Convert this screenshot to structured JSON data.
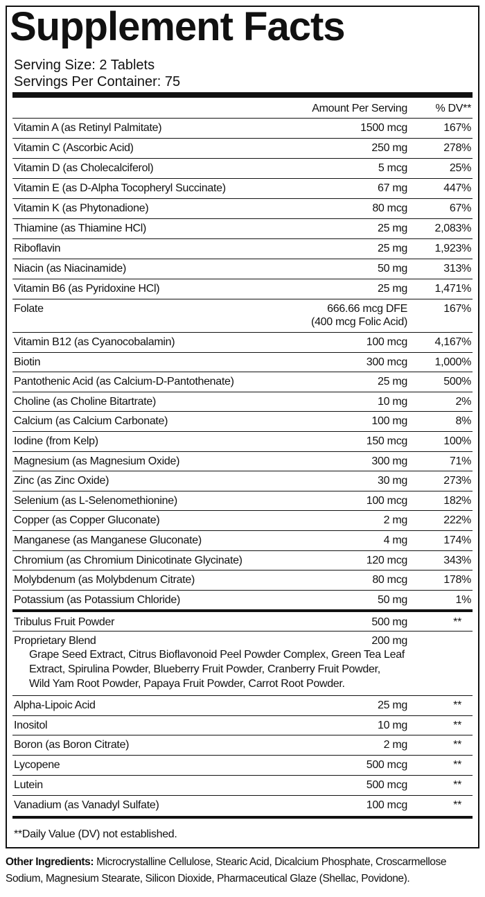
{
  "header": {
    "title": "Supplement Facts",
    "serving_size": "Serving Size: 2 Tablets",
    "servings_per_container": "Servings Per Container: 75"
  },
  "table": {
    "columns": [
      "Amount Per Serving",
      "% DV**"
    ],
    "rows": [
      {
        "name": "Vitamin A (as Retinyl Palmitate)",
        "amount": "1500 mcg",
        "dv": "167%"
      },
      {
        "name": "Vitamin C (Ascorbic Acid)",
        "amount": "250 mg",
        "dv": "278%"
      },
      {
        "name": "Vitamin D (as Cholecalciferol)",
        "amount": "5 mcg",
        "dv": "25%"
      },
      {
        "name": "Vitamin E (as D-Alpha Tocopheryl Succinate)",
        "amount": "67 mg",
        "dv": "447%"
      },
      {
        "name": "Vitamin K (as Phytonadione)",
        "amount": "80 mcg",
        "dv": "67%"
      },
      {
        "name": "Thiamine (as Thiamine HCl)",
        "amount": "25 mg",
        "dv": "2,083%"
      },
      {
        "name": "Riboflavin",
        "amount": "25 mg",
        "dv": "1,923%"
      },
      {
        "name": "Niacin (as Niacinamide)",
        "amount": "50 mg",
        "dv": "313%"
      },
      {
        "name": "Vitamin B6 (as Pyridoxine HCl)",
        "amount": "25 mg",
        "dv": "1,471%"
      },
      {
        "name": "Folate",
        "amount": "666.66 mcg DFE",
        "amount_note": "(400 mcg Folic Acid)",
        "dv": "167%"
      },
      {
        "name": "Vitamin B12 (as Cyanocobalamin)",
        "amount": "100 mcg",
        "dv": "4,167%"
      },
      {
        "name": "Biotin",
        "amount": "300 mcg",
        "dv": "1,000%"
      },
      {
        "name": "Pantothenic Acid (as Calcium-D-Pantothenate)",
        "amount": "25 mg",
        "dv": "500%"
      },
      {
        "name": "Choline (as Choline Bitartrate)",
        "amount": "10 mg",
        "dv": "2%"
      },
      {
        "name": "Calcium (as Calcium Carbonate)",
        "amount": "100 mg",
        "dv": "8%"
      },
      {
        "name": "Iodine (from Kelp)",
        "amount": "150 mcg",
        "dv": "100%"
      },
      {
        "name": "Magnesium (as Magnesium Oxide)",
        "amount": "300 mg",
        "dv": "71%"
      },
      {
        "name": "Zinc (as Zinc Oxide)",
        "amount": "30 mg",
        "dv": "273%"
      },
      {
        "name": "Selenium (as L-Selenomethionine)",
        "amount": "100 mcg",
        "dv": "182%"
      },
      {
        "name": "Copper (as Copper Gluconate)",
        "amount": "2 mg",
        "dv": "222%"
      },
      {
        "name": "Manganese (as Manganese Gluconate)",
        "amount": "4 mg",
        "dv": "174%"
      },
      {
        "name": "Chromium (as Chromium Dinicotinate Glycinate)",
        "amount": "120 mcg",
        "dv": "343%"
      },
      {
        "name": "Molybdenum (as Molybdenum Citrate)",
        "amount": "80 mcg",
        "dv": "178%"
      },
      {
        "name": "Potassium (as Potassium Chloride)",
        "amount": "50 mg",
        "dv": "1%"
      }
    ],
    "other_rows": [
      {
        "name": "Tribulus Fruit Powder",
        "amount": "500 mg",
        "dv": "**"
      },
      {
        "name": "Proprietary Blend",
        "amount": "200 mg",
        "lines": [
          "Grape Seed Extract, Citrus Bioflavonoid Peel Powder Complex, Green Tea Leaf",
          "Extract, Spirulina Powder, Blueberry Fruit Powder, Cranberry Fruit Powder,",
          "Wild Yam Root Powder, Papaya Fruit Powder, Carrot Root Powder."
        ]
      }
    ],
    "extra_rows": [
      {
        "name": "Alpha-Lipoic Acid",
        "amount": "25 mg",
        "dv": "**"
      },
      {
        "name": "Inositol",
        "amount": "10 mg",
        "dv": "**"
      },
      {
        "name": "Boron (as Boron Citrate)",
        "amount": "2 mg",
        "dv": "**"
      },
      {
        "name": "Lycopene",
        "amount": "500 mcg",
        "dv": "**"
      },
      {
        "name": "Lutein",
        "amount": "500 mcg",
        "dv": "**"
      },
      {
        "name": "Vanadium (as Vanadyl Sulfate)",
        "amount": "100 mcg",
        "dv": "**"
      }
    ]
  },
  "footnote": "**Daily Value (DV) not established.",
  "other_ingredients": {
    "label": "Other Ingredients:",
    "text": "Microcrystalline Cellulose, Stearic Acid, Dicalcium Phosphate, Croscarmellose Sodium, Magnesium Stearate, Silicon Dioxide, Pharmaceutical Glaze (Shellac, Povidone)."
  }
}
